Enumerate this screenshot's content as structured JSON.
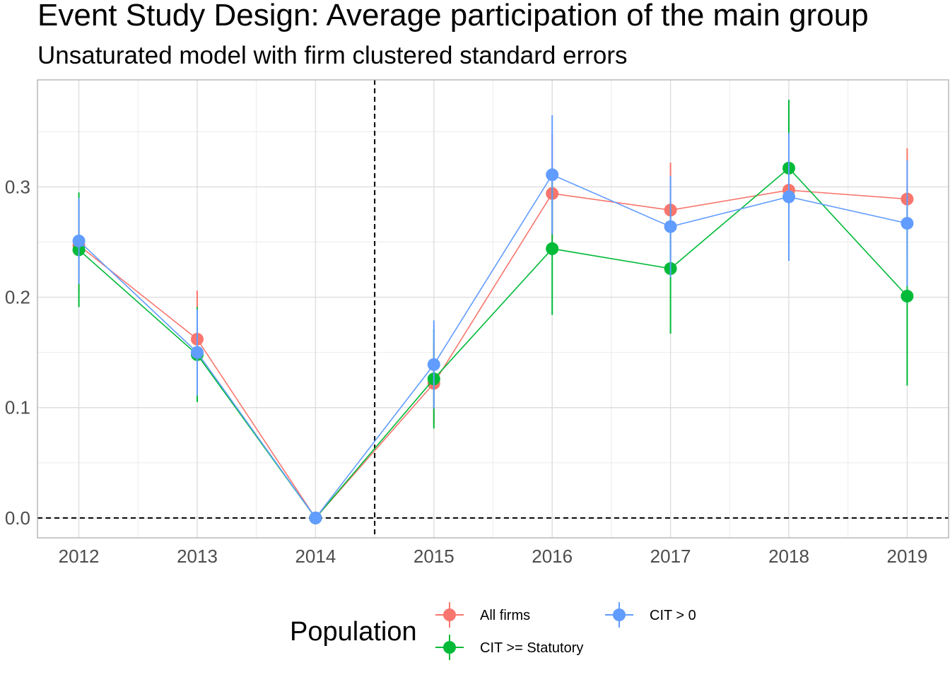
{
  "chart_data": {
    "type": "line",
    "title": "Event Study Design: Average participation of the main group",
    "subtitle": "Unsaturated model with firm clustered standard errors",
    "xlabel": "",
    "ylabel": "",
    "x": [
      2012,
      2013,
      2014,
      2015,
      2016,
      2017,
      2018,
      2019
    ],
    "x_tick_labels": [
      "2012",
      "2013",
      "2014",
      "2015",
      "2016",
      "2017",
      "2018",
      "2019"
    ],
    "y_ticks": [
      0.0,
      0.1,
      0.2,
      0.3
    ],
    "y_tick_labels": [
      "0.0",
      "0.1",
      "0.2",
      "0.3"
    ],
    "xlim": [
      2011.65,
      2019.35
    ],
    "ylim": [
      -0.018,
      0.397
    ],
    "reference_lines": [
      {
        "axis": "x",
        "value": 2014.5,
        "style": "dashed"
      },
      {
        "axis": "y",
        "value": 0.0,
        "style": "dashed"
      }
    ],
    "grid": true,
    "legend": {
      "title": "Population",
      "placement": "bottom"
    },
    "series": [
      {
        "name": "All firms",
        "color": "#F8766D",
        "values": [
          0.247,
          0.162,
          0.0,
          0.122,
          0.294,
          0.279,
          0.297,
          0.289
        ],
        "lower": [
          0.205,
          0.118,
          0.0,
          0.085,
          0.24,
          0.236,
          0.265,
          0.243
        ],
        "upper": [
          0.289,
          0.206,
          0.0,
          0.159,
          0.348,
          0.322,
          0.329,
          0.335
        ]
      },
      {
        "name": "CIT >= Statutory",
        "color": "#00BA38",
        "values": [
          0.243,
          0.148,
          0.0,
          0.126,
          0.244,
          0.226,
          0.317,
          0.201
        ],
        "lower": [
          0.191,
          0.105,
          0.0,
          0.081,
          0.184,
          0.167,
          0.255,
          0.12
        ],
        "upper": [
          0.295,
          0.191,
          0.0,
          0.171,
          0.304,
          0.285,
          0.379,
          0.282
        ]
      },
      {
        "name": "CIT > 0",
        "color": "#619CFF",
        "values": [
          0.251,
          0.15,
          0.0,
          0.139,
          0.311,
          0.264,
          0.291,
          0.267
        ],
        "lower": [
          0.212,
          0.111,
          0.0,
          0.099,
          0.257,
          0.218,
          0.233,
          0.21
        ],
        "upper": [
          0.29,
          0.189,
          0.0,
          0.179,
          0.365,
          0.31,
          0.349,
          0.324
        ]
      }
    ]
  }
}
